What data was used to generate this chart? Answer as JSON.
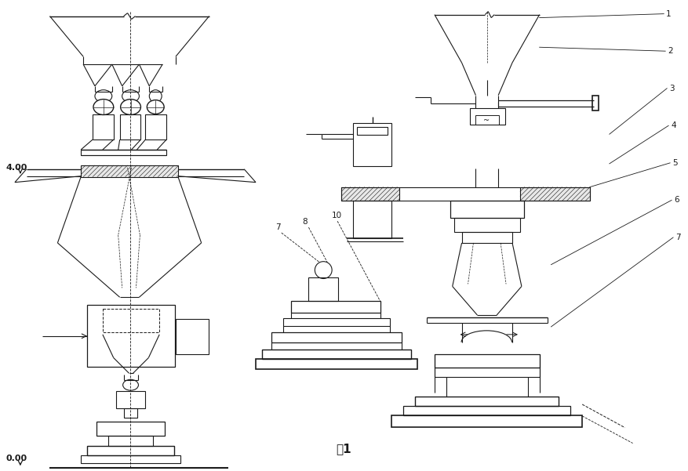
{
  "title": "图1",
  "bg_color": "#ffffff",
  "line_color": "#1a1a1a",
  "title_fontsize": 11,
  "fig_width": 8.77,
  "fig_height": 6.01,
  "annotation_400": "4.00",
  "annotation_000": "0.00"
}
